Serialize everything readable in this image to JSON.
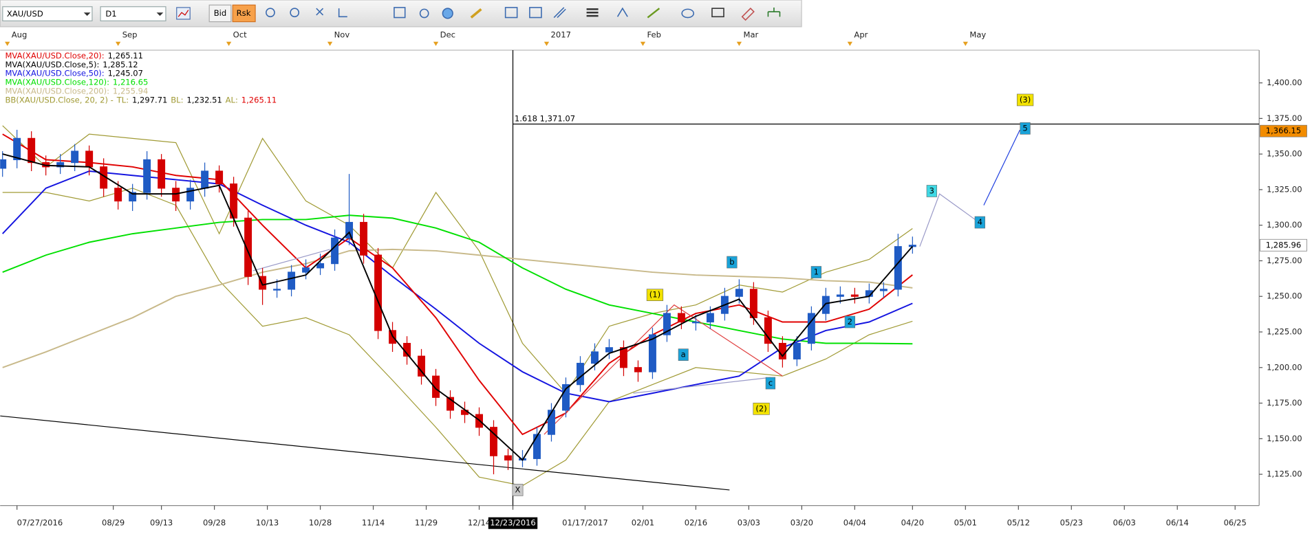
{
  "toolbar": {
    "symbol": "XAU/USD",
    "timeframe": "D1",
    "bid_button": "Bid",
    "ask_button": "Rsk"
  },
  "chart_data": {
    "type": "candlestick",
    "xlim": [
      -0.5,
      261
    ],
    "ylim": [
      1103,
      1423
    ],
    "yticks": [
      {
        "value": 1125,
        "label": "1,125.00"
      },
      {
        "value": 1150,
        "label": "1,150.00"
      },
      {
        "value": 1175,
        "label": "1,175.00"
      },
      {
        "value": 1200,
        "label": "1,200.00"
      },
      {
        "value": 1225,
        "label": "1,225.00"
      },
      {
        "value": 1250,
        "label": "1,250.00"
      },
      {
        "value": 1275,
        "label": "1,275.00"
      },
      {
        "value": 1300,
        "label": "1,300.00"
      },
      {
        "value": 1325,
        "label": "1,325.00"
      },
      {
        "value": 1350,
        "label": "1,350.00"
      },
      {
        "value": 1375,
        "label": "1,375.00"
      },
      {
        "value": 1400,
        "label": "1,400.00"
      }
    ],
    "xticks": [
      {
        "value": 3,
        "label": "07/27/2016"
      },
      {
        "value": 23,
        "label": "08/29"
      },
      {
        "value": 33,
        "label": "09/13"
      },
      {
        "value": 44,
        "label": "09/28"
      },
      {
        "value": 55,
        "label": "10/13"
      },
      {
        "value": 66,
        "label": "10/28"
      },
      {
        "value": 77,
        "label": "11/14"
      },
      {
        "value": 88,
        "label": "11/29"
      },
      {
        "value": 99,
        "label": "12/14"
      },
      {
        "value": 106,
        "label": "12/23/2016"
      },
      {
        "value": 121,
        "label": "01/17/2017"
      },
      {
        "value": 133,
        "label": "02/01"
      },
      {
        "value": 144,
        "label": "02/16"
      },
      {
        "value": 155,
        "label": "03/03"
      },
      {
        "value": 166,
        "label": "03/20"
      },
      {
        "value": 177,
        "label": "04/04"
      },
      {
        "value": 189,
        "label": "04/20"
      },
      {
        "value": 200,
        "label": "05/01"
      },
      {
        "value": 211,
        "label": "05/12"
      },
      {
        "value": 222,
        "label": "05/23"
      },
      {
        "value": 233,
        "label": "06/03"
      },
      {
        "value": 244,
        "label": "06/14"
      },
      {
        "value": 256,
        "label": "06/25"
      }
    ],
    "top_ticks": [
      {
        "value": 1,
        "label": "Aug"
      },
      {
        "value": 24,
        "label": "Sep"
      },
      {
        "value": 47,
        "label": "Oct"
      },
      {
        "value": 68,
        "label": "Nov"
      },
      {
        "value": 90,
        "label": "Dec"
      },
      {
        "value": 113,
        "label": "2017"
      },
      {
        "value": 133,
        "label": "Feb"
      },
      {
        "value": 153,
        "label": "Mar"
      },
      {
        "value": 176,
        "label": "Apr"
      },
      {
        "value": 200,
        "label": "May"
      }
    ],
    "crosshair": {
      "x": 106
    },
    "candles": {
      "up_color": "#1f5bc4",
      "down_color": "#d40000",
      "x": [
        0,
        3,
        6,
        9,
        12,
        15,
        18,
        21,
        24,
        27,
        30,
        33,
        36,
        39,
        42,
        45,
        48,
        51,
        54,
        57,
        60,
        63,
        66,
        69,
        72,
        75,
        78,
        81,
        84,
        87,
        90,
        93,
        96,
        99,
        102,
        105,
        108,
        111,
        114,
        117,
        120,
        123,
        126,
        129,
        132,
        135,
        138,
        141,
        144,
        147,
        150,
        153,
        156,
        159,
        162,
        165,
        168,
        171,
        174,
        177,
        180,
        183,
        186,
        189
      ],
      "open": [
        1340,
        1346,
        1361,
        1344,
        1341,
        1344,
        1352,
        1341,
        1326,
        1317,
        1323,
        1346,
        1326,
        1317,
        1326,
        1338,
        1329,
        1305,
        1264,
        1255,
        1255,
        1267,
        1270,
        1273,
        1291,
        1302,
        1279,
        1226,
        1217,
        1208,
        1194,
        1179,
        1170,
        1167,
        1158,
        1138,
        1135,
        1136,
        1153,
        1170,
        1188,
        1203,
        1211,
        1214,
        1200,
        1197,
        1223,
        1238,
        1232,
        1232,
        1238,
        1250,
        1255,
        1235,
        1217,
        1206,
        1217,
        1238,
        1250,
        1251,
        1250,
        1254,
        1255,
        1285
      ],
      "high": [
        1352,
        1367,
        1366,
        1349,
        1350,
        1357,
        1356,
        1347,
        1331,
        1329,
        1352,
        1350,
        1331,
        1332,
        1344,
        1342,
        1334,
        1310,
        1270,
        1262,
        1272,
        1276,
        1280,
        1297,
        1336,
        1308,
        1284,
        1232,
        1222,
        1213,
        1199,
        1184,
        1176,
        1172,
        1163,
        1143,
        1142,
        1158,
        1175,
        1193,
        1208,
        1217,
        1220,
        1219,
        1205,
        1228,
        1244,
        1243,
        1237,
        1243,
        1256,
        1262,
        1260,
        1240,
        1222,
        1222,
        1243,
        1256,
        1257,
        1256,
        1259,
        1260,
        1294,
        1292
      ],
      "low": [
        1334,
        1340,
        1338,
        1335,
        1336,
        1338,
        1335,
        1320,
        1311,
        1310,
        1318,
        1320,
        1310,
        1311,
        1320,
        1323,
        1299,
        1258,
        1244,
        1249,
        1250,
        1262,
        1265,
        1268,
        1286,
        1273,
        1220,
        1211,
        1202,
        1188,
        1173,
        1164,
        1161,
        1152,
        1125,
        1128,
        1130,
        1131,
        1148,
        1165,
        1183,
        1198,
        1206,
        1194,
        1190,
        1192,
        1218,
        1227,
        1226,
        1227,
        1233,
        1245,
        1230,
        1211,
        1200,
        1201,
        1212,
        1233,
        1245,
        1245,
        1245,
        1249,
        1250,
        1280
      ],
      "close": [
        1346,
        1361,
        1344,
        1341,
        1344,
        1352,
        1341,
        1326,
        1317,
        1323,
        1346,
        1326,
        1317,
        1326,
        1338,
        1329,
        1305,
        1264,
        1255,
        1255,
        1267,
        1270,
        1273,
        1291,
        1302,
        1279,
        1226,
        1217,
        1208,
        1194,
        1179,
        1170,
        1167,
        1158,
        1138,
        1135,
        1136,
        1153,
        1170,
        1188,
        1203,
        1211,
        1214,
        1200,
        1197,
        1223,
        1238,
        1232,
        1232,
        1238,
        1250,
        1255,
        1235,
        1217,
        1206,
        1217,
        1238,
        1250,
        1251,
        1250,
        1254,
        1255,
        1285,
        1285.96
      ]
    },
    "overlays": [
      {
        "name": "MVA(XAU/USD.Close,20):",
        "last_label": "1,265.11",
        "color": "#e00000",
        "x": [
          0,
          9,
          18,
          27,
          36,
          45,
          54,
          63,
          72,
          81,
          90,
          99,
          108,
          117,
          126,
          135,
          144,
          153,
          162,
          171,
          180,
          189
        ],
        "values": [
          1364,
          1346,
          1344,
          1341,
          1335,
          1332,
          1300,
          1270,
          1291,
          1270,
          1235,
          1191,
          1153,
          1168,
          1203,
          1223,
          1238,
          1244,
          1232,
          1232,
          1241,
          1265.11
        ]
      },
      {
        "name": "MVA(XAU/USD.Close,5):",
        "last_label": "1,285.12",
        "color": "#000000",
        "x": [
          0,
          9,
          18,
          27,
          36,
          45,
          54,
          63,
          72,
          81,
          90,
          99,
          108,
          117,
          126,
          135,
          144,
          153,
          162,
          171,
          180,
          189
        ],
        "values": [
          1350,
          1342,
          1341,
          1322,
          1322,
          1328,
          1258,
          1265,
          1295,
          1222,
          1185,
          1163,
          1135,
          1185,
          1210,
          1220,
          1236,
          1248,
          1208,
          1245,
          1250,
          1285.12
        ]
      },
      {
        "name": "MVA(XAU/USD.Close,50):",
        "last_label": "1,245.07",
        "color": "#1414e0",
        "x": [
          0,
          9,
          18,
          27,
          36,
          45,
          54,
          63,
          72,
          81,
          90,
          99,
          108,
          117,
          126,
          135,
          144,
          153,
          162,
          171,
          180,
          189
        ],
        "values": [
          1294,
          1326,
          1338,
          1335,
          1332,
          1329,
          1314,
          1300,
          1288,
          1264,
          1241,
          1217,
          1197,
          1182,
          1176,
          1182,
          1188,
          1194,
          1214,
          1226,
          1232,
          1245.07
        ]
      },
      {
        "name": "MVA(XAU/USD.Close,120):",
        "last_label": "1,216.65",
        "color": "#00e000",
        "x": [
          0,
          9,
          18,
          27,
          36,
          45,
          54,
          63,
          72,
          81,
          90,
          99,
          108,
          117,
          126,
          135,
          144,
          153,
          162,
          171,
          180,
          189
        ],
        "values": [
          1267,
          1279,
          1288,
          1294,
          1298,
          1302,
          1304,
          1304,
          1307,
          1305,
          1298,
          1288,
          1270,
          1255,
          1244,
          1238,
          1232,
          1226,
          1220,
          1217,
          1217,
          1216.65
        ]
      },
      {
        "name": "MVA(XAU/USD.Close,200):",
        "last_label": "1,255.94",
        "color": "#c8b98a",
        "x": [
          0,
          9,
          18,
          27,
          36,
          45,
          54,
          63,
          72,
          81,
          90,
          99,
          108,
          117,
          126,
          135,
          144,
          153,
          162,
          171,
          180,
          189
        ],
        "values": [
          1200,
          1211,
          1223,
          1235,
          1250,
          1258,
          1267,
          1273,
          1282,
          1283,
          1282,
          1279,
          1276,
          1273,
          1270,
          1267,
          1265,
          1264,
          1263,
          1261,
          1260,
          1255.94
        ]
      }
    ],
    "bollinger": {
      "name": "BB(XAU/USD.Close, 20, 2) -",
      "color": "#a09a34",
      "x": [
        0,
        9,
        18,
        27,
        36,
        45,
        54,
        63,
        72,
        81,
        90,
        99,
        108,
        117,
        126,
        135,
        144,
        153,
        162,
        171,
        180,
        189
      ],
      "upper": {
        "key": "TL:",
        "last_label": "1,297.71",
        "values": [
          1370,
          1341,
          1364,
          1361,
          1358,
          1294,
          1361,
          1317,
          1300,
          1270,
          1323,
          1282,
          1217,
          1182,
          1229,
          1238,
          1244,
          1258,
          1253,
          1267,
          1276,
          1297.71
        ]
      },
      "lower": {
        "key": "BL:",
        "last_label": "1,232.51",
        "values": [
          1323,
          1323,
          1317,
          1326,
          1314,
          1261,
          1229,
          1235,
          1223,
          1191,
          1158,
          1123,
          1117,
          1135,
          1176,
          1188,
          1200,
          1197,
          1194,
          1206,
          1223,
          1232.51
        ]
      },
      "middle_key": "AL:",
      "middle_label": "1,265.11"
    },
    "fib_line": {
      "label": "1.618 1,371.07",
      "value": 1371.07
    },
    "price_tags": [
      {
        "value": 1366.15,
        "label": "1,366.15",
        "color": "#f28c00"
      },
      {
        "value": 1285.96,
        "label": "1,285.96",
        "color": "#ffffff"
      }
    ],
    "lines": [
      {
        "color": "#000000",
        "points": [
          {
            "x": -0.5,
            "y": 1166
          },
          {
            "x": 151,
            "y": 1114
          }
        ]
      },
      {
        "color": "#9a9ac8",
        "points": [
          {
            "x": 52,
            "y": 1268
          },
          {
            "x": 68,
            "y": 1283
          }
        ]
      },
      {
        "color": "#9a9ac8",
        "points": [
          {
            "x": 131,
            "y": 1182
          },
          {
            "x": 159.5,
            "y": 1193
          }
        ]
      },
      {
        "color": "#e04040",
        "points": [
          {
            "x": 112.5,
            "y": 1153
          },
          {
            "x": 139.5,
            "y": 1244
          },
          {
            "x": 162,
            "y": 1194
          }
        ]
      },
      {
        "color": "#9a9ac8",
        "points": [
          {
            "x": 190.5,
            "y": 1285
          },
          {
            "x": 194.6,
            "y": 1322
          },
          {
            "x": 202,
            "y": 1304
          }
        ]
      },
      {
        "color": "#2040e0",
        "points": [
          {
            "x": 203.8,
            "y": 1314
          },
          {
            "x": 211.3,
            "y": 1367
          }
        ]
      }
    ],
    "wave_labels": [
      {
        "text": "(3)",
        "x": 212.4,
        "y": 1388,
        "bg": "#f2e200"
      },
      {
        "text": "5",
        "x": 212.4,
        "y": 1368,
        "bg": "#1aa3d9"
      },
      {
        "text": "3",
        "x": 193,
        "y": 1324,
        "bg": "#3fd8e4"
      },
      {
        "text": "4",
        "x": 203,
        "y": 1302,
        "bg": "#1aa3d9"
      },
      {
        "text": "b",
        "x": 151.5,
        "y": 1274,
        "bg": "#1aa3d9"
      },
      {
        "text": "1",
        "x": 169,
        "y": 1267,
        "bg": "#1aa3d9"
      },
      {
        "text": "(1)",
        "x": 135.5,
        "y": 1251,
        "bg": "#f2e200"
      },
      {
        "text": "2",
        "x": 176,
        "y": 1232,
        "bg": "#1aa3d9"
      },
      {
        "text": "a",
        "x": 141.4,
        "y": 1209,
        "bg": "#1aa3d9"
      },
      {
        "text": "c",
        "x": 159.5,
        "y": 1189,
        "bg": "#1aa3d9"
      },
      {
        "text": "(2)",
        "x": 157.6,
        "y": 1171,
        "bg": "#f2e200"
      },
      {
        "text": "X",
        "x": 107,
        "y": 1114,
        "bg": "#c8c8c8"
      }
    ]
  }
}
